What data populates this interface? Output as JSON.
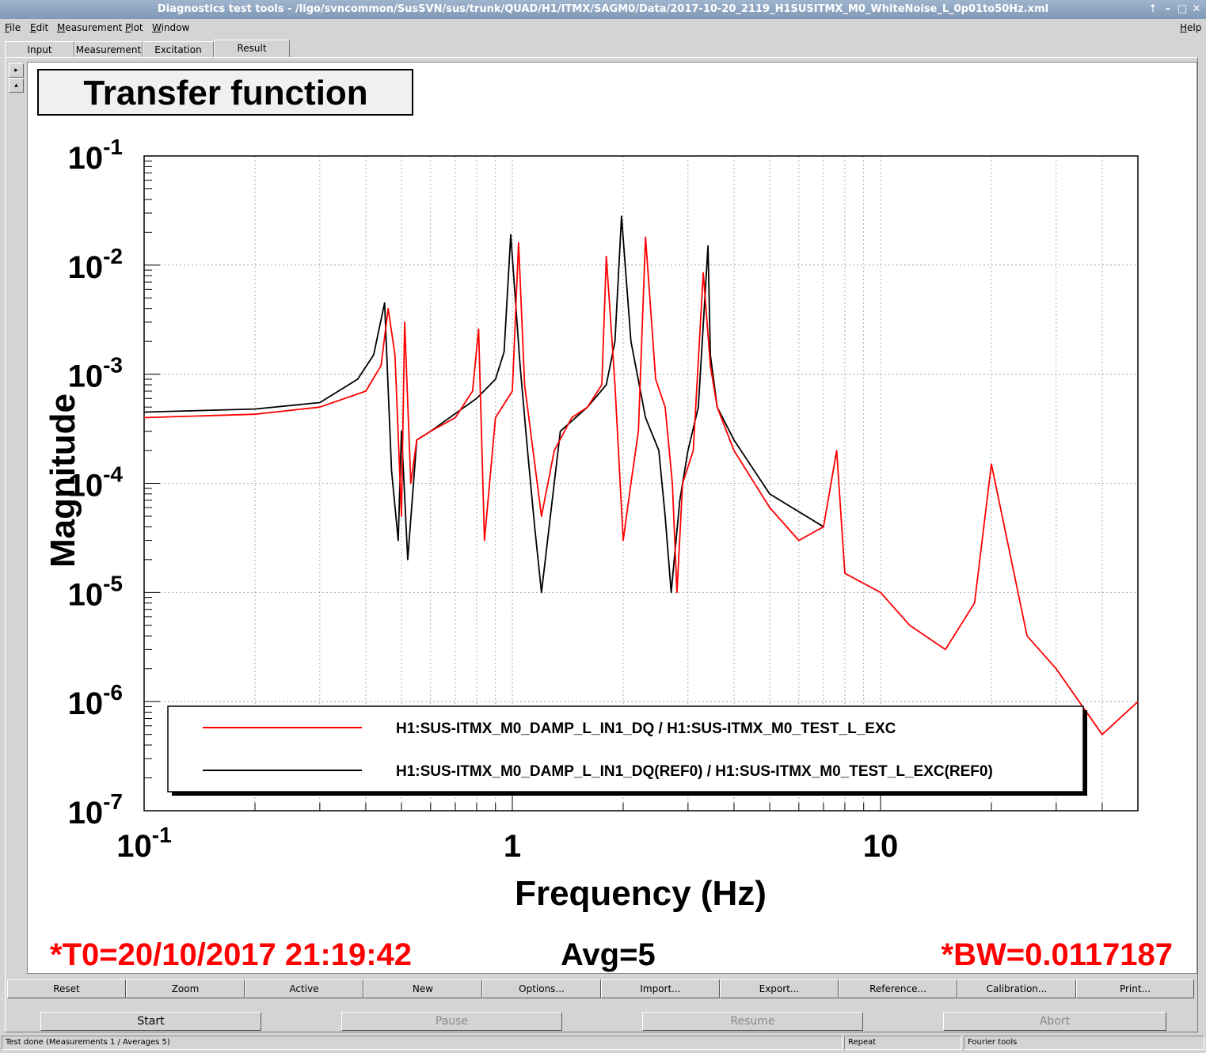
{
  "window": {
    "title": "Diagnostics test tools - /ligo/svncommon/SusSVN/sus/trunk/QUAD/H1/ITMX/SAGM0/Data/2017-10-20_2119_H1SUSITMX_M0_WhiteNoise_L_0p01to50Hz.xml",
    "controls": [
      "up-arrow-icon",
      "minimize-icon",
      "maximize-icon",
      "close-icon"
    ]
  },
  "menubar": {
    "items": [
      "File",
      "Edit",
      "Measurement",
      "Plot",
      "Window"
    ],
    "help": "Help"
  },
  "tabs": [
    "Input",
    "Measurement",
    "Excitation",
    "Result"
  ],
  "active_tab": "Result",
  "plot": {
    "title": "Transfer function",
    "xlabel": "Frequency (Hz)",
    "ylabel": "Magnitude",
    "footer": {
      "t0": "*T0=20/10/2017 21:19:42",
      "avg": "Avg=5",
      "bw": "*BW=0.0117187"
    },
    "legend": [
      {
        "label": "H1:SUS-ITMX_M0_DAMP_L_IN1_DQ / H1:SUS-ITMX_M0_TEST_L_EXC",
        "color": "#ff0000"
      },
      {
        "label": "H1:SUS-ITMX_M0_DAMP_L_IN1_DQ(REF0) / H1:SUS-ITMX_M0_TEST_L_EXC(REF0)",
        "color": "#000000"
      }
    ]
  },
  "chart_data": {
    "type": "line",
    "title": "Transfer function",
    "xlabel": "Frequency (Hz)",
    "ylabel": "Magnitude",
    "xscale": "log",
    "yscale": "log",
    "xlim": [
      0.1,
      50
    ],
    "ylim": [
      1e-07,
      0.1
    ],
    "x_ticks": [
      "10^-1",
      "1",
      "10"
    ],
    "y_ticks": [
      "10^-7",
      "10^-6",
      "10^-5",
      "10^-4",
      "10^-3",
      "10^-2",
      "10^-1"
    ],
    "grid": true,
    "legend_position": "bottom",
    "series": [
      {
        "name": "H1:SUS-ITMX_M0_DAMP_L_IN1_DQ / H1:SUS-ITMX_M0_TEST_L_EXC",
        "color": "#ff0000",
        "x": [
          0.1,
          0.2,
          0.3,
          0.4,
          0.44,
          0.46,
          0.48,
          0.5,
          0.51,
          0.53,
          0.55,
          0.6,
          0.7,
          0.78,
          0.81,
          0.84,
          0.9,
          1.0,
          1.04,
          1.08,
          1.2,
          1.3,
          1.45,
          1.6,
          1.75,
          1.8,
          1.9,
          2.0,
          2.1,
          2.2,
          2.3,
          2.45,
          2.6,
          2.72,
          2.8,
          2.9,
          3.1,
          3.3,
          3.45,
          3.6,
          4.0,
          5.0,
          6.0,
          7.0,
          7.6,
          8.0,
          10.0,
          12.0,
          15.0,
          18.0,
          20.0,
          25.0,
          30.0,
          40.0,
          50.0
        ],
        "y": [
          0.0004,
          0.00043,
          0.0005,
          0.0007,
          0.0012,
          0.004,
          0.0015,
          5e-05,
          0.003,
          0.0001,
          0.00025,
          0.0003,
          0.0004,
          0.0007,
          0.0026,
          3e-05,
          0.0004,
          0.0007,
          0.016,
          0.0008,
          5e-05,
          0.0002,
          0.0004,
          0.0005,
          0.0008,
          0.012,
          0.0008,
          3e-05,
          0.0001,
          0.0003,
          0.018,
          0.0009,
          0.0005,
          0.0001,
          1e-05,
          0.0001,
          0.0002,
          0.0085,
          0.0012,
          0.0005,
          0.0002,
          6e-05,
          3e-05,
          4e-05,
          0.0002,
          1.5e-05,
          1e-05,
          5e-06,
          3e-06,
          8e-06,
          0.00015,
          4e-06,
          2e-06,
          5e-07,
          1e-06
        ]
      },
      {
        "name": "H1:SUS-ITMX_M0_DAMP_L_IN1_DQ(REF0) / H1:SUS-ITMX_M0_TEST_L_EXC(REF0)",
        "color": "#000000",
        "x": [
          0.1,
          0.2,
          0.3,
          0.38,
          0.42,
          0.45,
          0.47,
          0.49,
          0.5,
          0.52,
          0.55,
          0.6,
          0.8,
          0.9,
          0.95,
          0.99,
          1.05,
          1.1,
          1.15,
          1.2,
          1.35,
          1.6,
          1.8,
          1.9,
          1.98,
          2.1,
          2.3,
          2.5,
          2.6,
          2.7,
          2.85,
          3.0,
          3.2,
          3.4,
          3.45,
          3.6,
          4.0,
          5.0,
          7.0
        ],
        "y": [
          0.00045,
          0.00048,
          0.00055,
          0.0009,
          0.0015,
          0.0045,
          0.00013,
          3e-05,
          0.0003,
          2e-05,
          0.00025,
          0.0003,
          0.0006,
          0.0009,
          0.0016,
          0.019,
          0.0012,
          0.0002,
          4e-05,
          1e-05,
          0.0003,
          0.0005,
          0.0008,
          0.002,
          0.028,
          0.002,
          0.0004,
          0.0002,
          5e-05,
          1e-05,
          7e-05,
          0.0002,
          0.0005,
          0.015,
          0.0015,
          0.0005,
          0.00025,
          8e-05,
          4e-05
        ]
      }
    ]
  },
  "buttons": [
    "Reset",
    "Zoom",
    "Active",
    "New",
    "Options...",
    "Import...",
    "Export...",
    "Reference...",
    "Calibration...",
    "Print..."
  ],
  "controls": {
    "start": "Start",
    "pause": "Pause",
    "resume": "Resume",
    "abort": "Abort"
  },
  "status": {
    "message": "Test done (Measurements 1 / Averages 5)",
    "repeat": "Repeat",
    "mode": "Fourier tools"
  }
}
